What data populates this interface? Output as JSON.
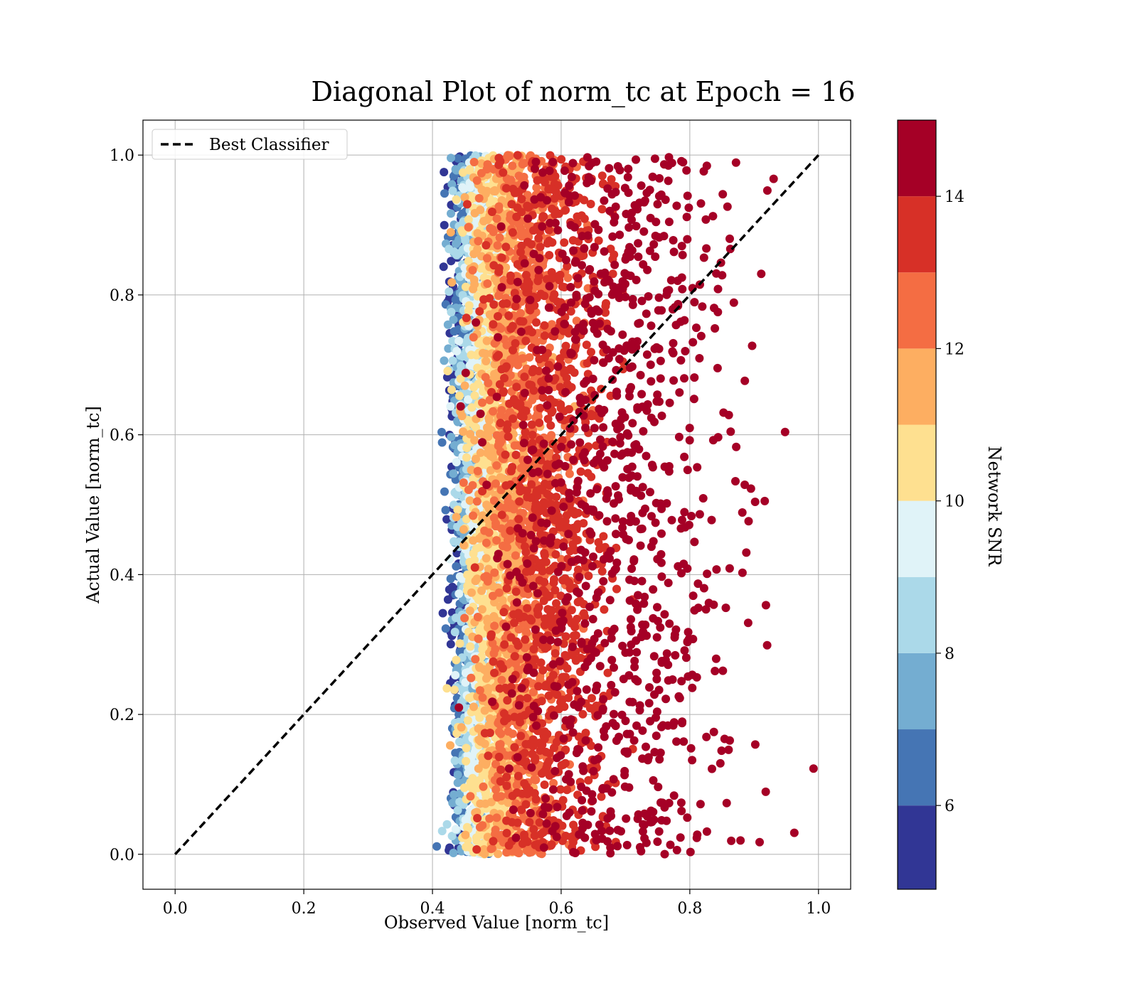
{
  "chart_data": {
    "type": "scatter",
    "title": "Diagonal Plot of norm_tc at Epoch = 16",
    "xlabel": "Observed Value [norm_tc]",
    "ylabel": "Actual Value [norm_tc]",
    "xlim": [
      -0.05,
      1.05
    ],
    "ylim": [
      -0.05,
      1.05
    ],
    "x_ticks": [
      "0.0",
      "0.2",
      "0.4",
      "0.6",
      "0.8",
      "1.0"
    ],
    "y_ticks": [
      "0.0",
      "0.2",
      "0.4",
      "0.6",
      "0.8",
      "1.0"
    ],
    "grid": true,
    "legend": {
      "placement": "top-left",
      "entries": [
        {
          "label": "Best Classifier",
          "style": "dashed",
          "color": "#000000"
        }
      ]
    },
    "reference_line": {
      "label": "Best Classifier",
      "x": [
        0.0,
        1.0
      ],
      "y": [
        0.0,
        1.0
      ]
    },
    "series": [
      {
        "snr": 5.5,
        "x_mean": 0.445,
        "x_spread": 0.012,
        "y_range": [
          0.0,
          1.0
        ],
        "density": 0.25
      },
      {
        "snr": 6.5,
        "x_mean": 0.452,
        "x_spread": 0.013,
        "y_range": [
          0.0,
          1.0
        ],
        "density": 0.35
      },
      {
        "snr": 7.5,
        "x_mean": 0.458,
        "x_spread": 0.014,
        "y_range": [
          0.0,
          1.0
        ],
        "density": 0.45
      },
      {
        "snr": 8.5,
        "x_mean": 0.465,
        "x_spread": 0.015,
        "y_range": [
          0.0,
          1.0
        ],
        "density": 0.6
      },
      {
        "snr": 9.5,
        "x_mean": 0.475,
        "x_spread": 0.016,
        "y_range": [
          0.0,
          1.0
        ],
        "density": 0.7
      },
      {
        "snr": 10.5,
        "x_mean": 0.49,
        "x_spread": 0.02,
        "y_range": [
          0.0,
          1.0
        ],
        "density": 0.9
      },
      {
        "snr": 11.5,
        "x_mean": 0.515,
        "x_spread": 0.028,
        "y_range": [
          0.0,
          1.0
        ],
        "density": 1.0
      },
      {
        "snr": 12.5,
        "x_mean": 0.545,
        "x_spread": 0.035,
        "y_range": [
          0.0,
          1.0
        ],
        "density": 1.0
      },
      {
        "snr": 13.5,
        "x_mean": 0.585,
        "x_spread": 0.045,
        "y_range": [
          0.0,
          1.0
        ],
        "density": 1.0
      },
      {
        "snr": 14.5,
        "x_mean": 0.695,
        "x_spread": 0.09,
        "y_range": [
          0.0,
          1.0
        ],
        "density": 1.0
      }
    ],
    "colorbar": {
      "label": "Network SNR",
      "range": [
        4.9,
        15.0
      ],
      "ticks": [
        "6",
        "8",
        "10",
        "12",
        "14"
      ],
      "bins": [
        {
          "from": 4.9,
          "to": 6.0,
          "color": "#313695"
        },
        {
          "from": 6.0,
          "to": 7.0,
          "color": "#4575b4"
        },
        {
          "from": 7.0,
          "to": 8.0,
          "color": "#74add1"
        },
        {
          "from": 8.0,
          "to": 9.0,
          "color": "#abd9e9"
        },
        {
          "from": 9.0,
          "to": 10.0,
          "color": "#e0f3f8"
        },
        {
          "from": 10.0,
          "to": 11.0,
          "color": "#fee090"
        },
        {
          "from": 11.0,
          "to": 12.0,
          "color": "#fdae61"
        },
        {
          "from": 12.0,
          "to": 13.0,
          "color": "#f46d43"
        },
        {
          "from": 13.0,
          "to": 14.0,
          "color": "#d73027"
        },
        {
          "from": 14.0,
          "to": 15.0,
          "color": "#a50026"
        }
      ]
    }
  }
}
